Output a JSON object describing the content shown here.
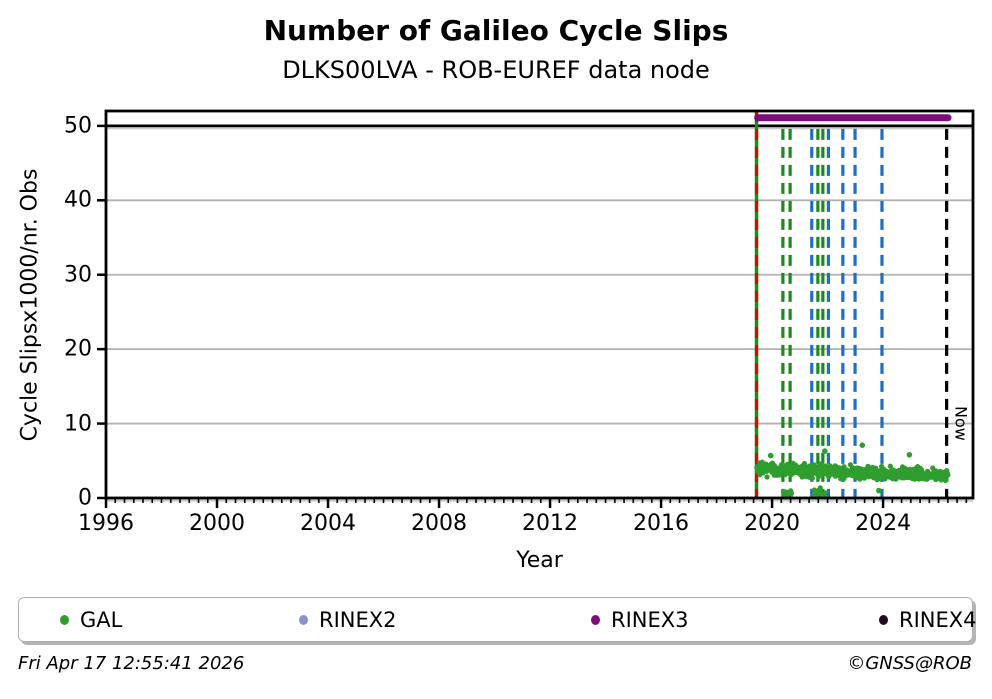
{
  "header": {
    "title": "Number of Galileo Cycle Slips",
    "subtitle": "DLKS00LVA - ROB-EUREF data node"
  },
  "footer": {
    "left": "Fri Apr 17 12:55:41 2026",
    "right": "©GNSS@ROB"
  },
  "legend": {
    "items": [
      {
        "label": "GAL",
        "color": "#2f9e2f"
      },
      {
        "label": "RINEX2",
        "color": "#8f8fce"
      },
      {
        "label": "RINEX3",
        "color": "#7a0e7a"
      },
      {
        "label": "RINEX4",
        "color": "#220a1d"
      }
    ]
  },
  "chart_data": {
    "type": "scatter",
    "title": "Number of Galileo Cycle Slips",
    "subtitle": "DLKS00LVA - ROB-EUREF data node",
    "xlabel": "Year",
    "ylabel": "Cycle Slipsx1000/nr. Obs",
    "xlim": [
      1996,
      2027.24
    ],
    "ylim": [
      0,
      52
    ],
    "xticks": [
      1996,
      2000,
      2004,
      2008,
      2012,
      2016,
      2020,
      2024
    ],
    "xminor_step": 0.33333,
    "yticks": [
      0,
      10,
      20,
      30,
      40,
      50
    ],
    "grid": {
      "gray_lines_y": [
        10,
        20,
        30,
        40
      ],
      "black_line_y": 50,
      "gray_color": "#b2b2b2"
    },
    "now_label": "Now",
    "series": {
      "gal": {
        "name": "GAL",
        "color": "#2f9e2f",
        "x_start": 2019.46,
        "x_end": 2026.33,
        "n": 640,
        "seed": 7,
        "band_y_start": 3.9,
        "band_y_end": 3.05,
        "spread": 0.8,
        "dips": [
          {
            "x": [
              2020.4,
              2020.72
            ],
            "y": [
              0.05,
              1.0
            ],
            "n": 18
          },
          {
            "x": [
              2021.48,
              2021.95
            ],
            "y": [
              0.2,
              1.5
            ],
            "n": 14
          }
        ],
        "outliers": [
          [
            2019.95,
            5.7
          ],
          [
            2021.9,
            6.3
          ],
          [
            2023.25,
            7.1
          ],
          [
            2023.85,
            1.0
          ],
          [
            2024.95,
            5.8
          ]
        ]
      },
      "rinex3": {
        "name": "RINEX3",
        "color": "#7a0e7a",
        "y": 51.1,
        "x_start": 2019.48,
        "x_end": 2026.34,
        "width": 7
      }
    },
    "events": [
      {
        "x": 2019.44,
        "color": "#1a8c1a",
        "style": "solid",
        "span": "full"
      },
      {
        "x": 2019.44,
        "color": "#e10600",
        "style": "dashed",
        "span": "full"
      },
      {
        "x": 2020.39,
        "color": "#1a8c1a",
        "style": "dashed",
        "span": "below50"
      },
      {
        "x": 2020.65,
        "color": "#1a8c1a",
        "style": "dashed",
        "span": "below50"
      },
      {
        "x": 2021.43,
        "color": "#1f6fc0",
        "style": "dashed",
        "span": "below50"
      },
      {
        "x": 2021.65,
        "color": "#1a8c1a",
        "style": "dashed",
        "span": "below50"
      },
      {
        "x": 2021.83,
        "color": "#1a8c1a",
        "style": "dashed",
        "span": "below50"
      },
      {
        "x": 2022.03,
        "color": "#1f6fc0",
        "style": "dashed",
        "span": "below50"
      },
      {
        "x": 2022.55,
        "color": "#1f6fc0",
        "style": "dashed",
        "span": "below50"
      },
      {
        "x": 2022.99,
        "color": "#1f6fc0",
        "style": "dashed",
        "span": "below50"
      },
      {
        "x": 2023.96,
        "color": "#1f6fc0",
        "style": "dashed",
        "span": "below50"
      },
      {
        "x": 2026.29,
        "color": "#000000",
        "style": "dashed",
        "span": "below50",
        "label": "Now"
      }
    ]
  }
}
